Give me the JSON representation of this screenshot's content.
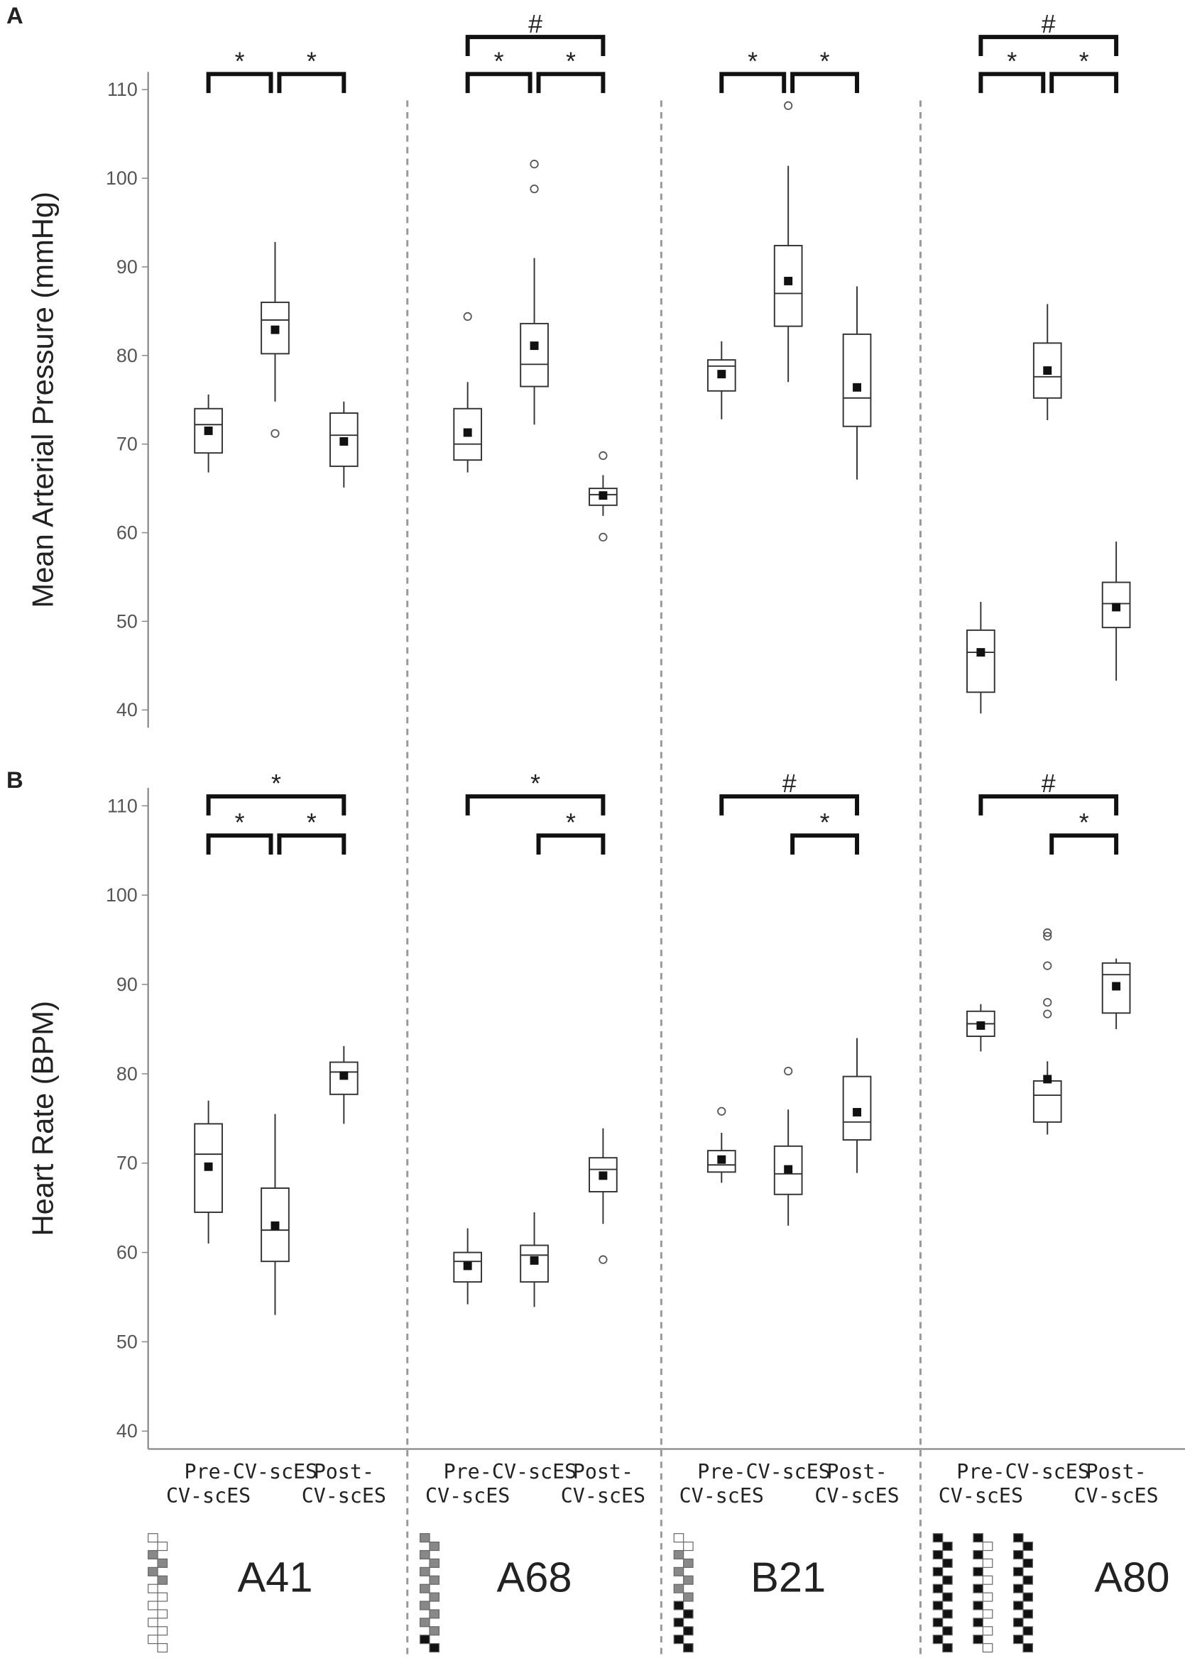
{
  "subjects": [
    "A41",
    "A68",
    "B21",
    "A80"
  ],
  "chart_data": [
    {
      "type": "box",
      "panel": "A",
      "y_label": "Mean Arterial Pressure (mmHg)",
      "ylim": [
        38,
        112
      ],
      "yticks": [
        40,
        50,
        60,
        70,
        80,
        90,
        100,
        110
      ],
      "groups": [
        {
          "boxes": [
            {
              "min": 66.8,
              "q1": 69,
              "median": 72.2,
              "q3": 74,
              "max": 75.6,
              "mean": 71.5
            },
            {
              "min": 74.8,
              "q1": 80.2,
              "median": 84,
              "q3": 86,
              "max": 92.8,
              "mean": 82.9,
              "outliers": [
                71.2
              ]
            },
            {
              "min": 65.1,
              "q1": 67.5,
              "median": 71,
              "q3": 73.5,
              "max": 74.8,
              "mean": 70.3
            }
          ],
          "brackets": [
            {
              "from": 0,
              "to": 1,
              "label": "*"
            },
            {
              "from": 1,
              "to": 2,
              "label": "*"
            }
          ]
        },
        {
          "boxes": [
            {
              "min": 66.8,
              "q1": 68.2,
              "median": 70,
              "q3": 74,
              "max": 77,
              "mean": 71.3,
              "outliers": [
                84.4
              ]
            },
            {
              "min": 72.2,
              "q1": 76.5,
              "median": 79,
              "q3": 83.6,
              "max": 91,
              "mean": 81.1,
              "outliers": [
                98.8,
                101.6
              ]
            },
            {
              "min": 61.9,
              "q1": 63.1,
              "median": 64.3,
              "q3": 65,
              "max": 66.5,
              "mean": 64.2,
              "outliers": [
                68.7,
                59.5
              ]
            }
          ],
          "brackets": [
            {
              "from": 0,
              "to": 1,
              "label": "*"
            },
            {
              "from": 1,
              "to": 2,
              "label": "*"
            },
            {
              "from": 0,
              "to": 2,
              "label": "#"
            }
          ]
        },
        {
          "boxes": [
            {
              "min": 72.8,
              "q1": 76,
              "median": 78.8,
              "q3": 79.5,
              "max": 81.6,
              "mean": 77.9
            },
            {
              "min": 77,
              "q1": 83.3,
              "median": 87,
              "q3": 92.4,
              "max": 101.4,
              "mean": 88.4,
              "outliers": [
                108.2
              ]
            },
            {
              "min": 66,
              "q1": 72,
              "median": 75.2,
              "q3": 82.4,
              "max": 87.8,
              "mean": 76.4
            }
          ],
          "brackets": [
            {
              "from": 0,
              "to": 1,
              "label": "*"
            },
            {
              "from": 1,
              "to": 2,
              "label": "*"
            }
          ]
        },
        {
          "boxes": [
            {
              "min": 39.6,
              "q1": 42,
              "median": 46.5,
              "q3": 49,
              "max": 52.2,
              "mean": 46.5
            },
            {
              "min": 72.7,
              "q1": 75.2,
              "median": 77.6,
              "q3": 81.4,
              "max": 85.8,
              "mean": 78.3
            },
            {
              "min": 43.3,
              "q1": 49.3,
              "median": 52,
              "q3": 54.4,
              "max": 59,
              "mean": 51.6
            }
          ],
          "brackets": [
            {
              "from": 0,
              "to": 1,
              "label": "*"
            },
            {
              "from": 1,
              "to": 2,
              "label": "*"
            },
            {
              "from": 0,
              "to": 2,
              "label": "#"
            }
          ]
        }
      ]
    },
    {
      "type": "box",
      "panel": "B",
      "y_label": "Heart Rate (BPM)",
      "ylim": [
        38,
        112
      ],
      "yticks": [
        40,
        50,
        60,
        70,
        80,
        90,
        100,
        110
      ],
      "categories": [
        "Pre-\nCV-scES",
        "CV-scES",
        "Post-\nCV-scES"
      ],
      "groups": [
        {
          "boxes": [
            {
              "min": 61,
              "q1": 64.5,
              "median": 71,
              "q3": 74.4,
              "max": 77,
              "mean": 69.6
            },
            {
              "min": 53,
              "q1": 59,
              "median": 62.5,
              "q3": 67.2,
              "max": 75.5,
              "mean": 63
            },
            {
              "min": 74.4,
              "q1": 77.7,
              "median": 80.2,
              "q3": 81.3,
              "max": 83.1,
              "mean": 79.8
            }
          ],
          "brackets": [
            {
              "from": 0,
              "to": 2,
              "label": "*"
            },
            {
              "from": 0,
              "to": 1,
              "label": "*"
            },
            {
              "from": 1,
              "to": 2,
              "label": "*"
            }
          ]
        },
        {
          "boxes": [
            {
              "min": 54.2,
              "q1": 56.7,
              "median": 59,
              "q3": 60,
              "max": 62.7,
              "mean": 58.5
            },
            {
              "min": 53.9,
              "q1": 56.7,
              "median": 59.7,
              "q3": 60.8,
              "max": 64.5,
              "mean": 59.1
            },
            {
              "min": 63.2,
              "q1": 66.8,
              "median": 69.3,
              "q3": 70.6,
              "max": 73.9,
              "mean": 68.6,
              "outliers": [
                59.2
              ]
            }
          ],
          "brackets": [
            {
              "from": 0,
              "to": 2,
              "label": "*"
            },
            {
              "from": 1,
              "to": 2,
              "label": "*"
            }
          ]
        },
        {
          "boxes": [
            {
              "min": 67.8,
              "q1": 69,
              "median": 69.8,
              "q3": 71.4,
              "max": 73.4,
              "mean": 70.4,
              "outliers": [
                75.8
              ]
            },
            {
              "min": 63,
              "q1": 66.5,
              "median": 68.8,
              "q3": 71.9,
              "max": 76,
              "mean": 69.3,
              "outliers": [
                80.3
              ]
            },
            {
              "min": 68.9,
              "q1": 72.6,
              "median": 74.6,
              "q3": 79.7,
              "max": 84,
              "mean": 75.7
            }
          ],
          "brackets": [
            {
              "from": 0,
              "to": 2,
              "label": "#"
            },
            {
              "from": 1,
              "to": 2,
              "label": "*"
            }
          ]
        },
        {
          "boxes": [
            {
              "min": 82.5,
              "q1": 84.2,
              "median": 85.6,
              "q3": 87,
              "max": 87.8,
              "mean": 85.4
            },
            {
              "min": 73.2,
              "q1": 74.6,
              "median": 77.6,
              "q3": 79.2,
              "max": 81.4,
              "mean": 79.4,
              "outliers": [
                86.7,
                88,
                92.1,
                95.4,
                95.8
              ]
            },
            {
              "min": 85,
              "q1": 86.8,
              "median": 91.1,
              "q3": 92.4,
              "max": 92.9,
              "mean": 89.8
            }
          ],
          "brackets": [
            {
              "from": 0,
              "to": 2,
              "label": "#"
            },
            {
              "from": 1,
              "to": 2,
              "label": "*"
            }
          ]
        }
      ]
    }
  ]
}
